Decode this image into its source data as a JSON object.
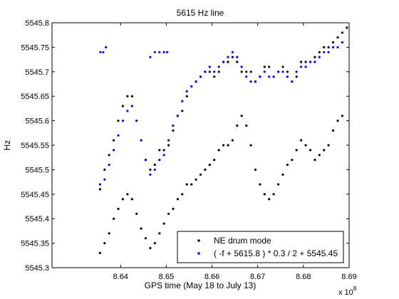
{
  "chart_data": {
    "type": "scatter",
    "title": "5615 Hz line",
    "xlabel": "GPS time (May 18 to July 13)",
    "ylabel": "Hz",
    "x_multiplier_label": "x 10",
    "x_multiplier_exponent": "8",
    "xlim": [
      8.625,
      8.69
    ],
    "ylim": [
      5545.3,
      5545.8
    ],
    "xticks": [
      8.64,
      8.65,
      8.66,
      8.67,
      8.68,
      8.69
    ],
    "xtick_labels": [
      "8.64",
      "8.65",
      "8.66",
      "8.67",
      "8.68",
      "8.69"
    ],
    "yticks": [
      5545.3,
      5545.35,
      5545.4,
      5545.45,
      5545.5,
      5545.55,
      5545.6,
      5545.65,
      5545.7,
      5545.75,
      5545.8
    ],
    "ytick_labels": [
      "5545.3",
      "5545.35",
      "5545.4",
      "5545.45",
      "5545.5",
      "5545.55",
      "5545.6",
      "5545.65",
      "5545.7",
      "5545.75",
      "5545.8"
    ],
    "grid": false,
    "legend_position": "bottom-right",
    "series": [
      {
        "name": "NE drum mode",
        "color": "#000000",
        "marker": "dot",
        "tracks": [
          {
            "x": [
              8.6355,
              8.6365,
              8.6375,
              8.6385,
              8.6395,
              8.6405,
              8.6415,
              8.6425,
              8.6435,
              8.6445,
              8.6455,
              8.6465,
              8.6475,
              8.6485,
              8.6495,
              8.6505,
              8.6515,
              8.6525,
              8.6535,
              8.6545,
              8.6555,
              8.6565,
              8.6575,
              8.6585,
              8.6595,
              8.6605,
              8.6615,
              8.6625,
              8.6635,
              8.6645,
              8.6655,
              8.6665,
              8.6675,
              8.6685,
              8.6695,
              8.6705,
              8.6715,
              8.6725,
              8.6735,
              8.6745,
              8.6755,
              8.6765,
              8.6775,
              8.6785,
              8.6795,
              8.6805,
              8.6815,
              8.6825,
              8.6835,
              8.6845,
              8.6855,
              8.6865,
              8.6875,
              8.6885,
              8.6895
            ],
            "y": [
              5545.46,
              5545.5,
              5545.53,
              5545.56,
              5545.6,
              5545.63,
              5545.65,
              5545.65,
              5545.6,
              5545.56,
              5545.52,
              5545.5,
              5545.51,
              5545.54,
              5545.54,
              5545.55,
              5545.58,
              5545.61,
              5545.62,
              5545.65,
              5545.67,
              5545.68,
              5545.69,
              5545.7,
              5545.7,
              5545.69,
              5545.7,
              5545.72,
              5545.72,
              5545.73,
              5545.72,
              5545.7,
              5545.7,
              5545.7,
              5545.68,
              5545.69,
              5545.71,
              5545.71,
              5545.69,
              5545.7,
              5545.71,
              5545.7,
              5545.68,
              5545.69,
              5545.72,
              5545.72,
              5545.72,
              5545.73,
              5545.74,
              5545.75,
              5545.75,
              5545.76,
              5545.77,
              5545.78,
              5545.79
            ]
          },
          {
            "x": [
              8.6355,
              8.6365,
              8.6375,
              8.6385,
              8.6395,
              8.6405,
              8.6415,
              8.6425,
              8.6435,
              8.6445,
              8.6455,
              8.6465,
              8.6475,
              8.6485,
              8.6495,
              8.6505,
              8.6515,
              8.6525,
              8.6535,
              8.6545,
              8.6555,
              8.6565,
              8.6575,
              8.6585,
              8.6595,
              8.6605,
              8.6615,
              8.6625,
              8.6635,
              8.6645,
              8.6655,
              8.6665,
              8.6675,
              8.6685,
              8.6695,
              8.6705,
              8.6715,
              8.6725,
              8.6735,
              8.6745,
              8.6755,
              8.6765,
              8.6775,
              8.6785,
              8.6795,
              8.6805,
              8.6815,
              8.6825,
              8.6835,
              8.6845,
              8.6855,
              8.6865,
              8.6875,
              8.6885
            ],
            "y": [
              5545.33,
              5545.35,
              5545.37,
              5545.4,
              5545.42,
              5545.44,
              5545.45,
              5545.44,
              5545.41,
              5545.38,
              5545.36,
              5545.34,
              5545.35,
              5545.37,
              5545.39,
              5545.41,
              5545.42,
              5545.44,
              5545.45,
              5545.47,
              5545.47,
              5545.48,
              5545.49,
              5545.5,
              5545.51,
              5545.52,
              5545.54,
              5545.55,
              5545.55,
              5545.56,
              5545.59,
              5545.61,
              5545.59,
              5545.55,
              5545.5,
              5545.47,
              5545.45,
              5545.44,
              5545.45,
              5545.47,
              5545.49,
              5545.51,
              5545.52,
              5545.54,
              5545.56,
              5545.55,
              5545.54,
              5545.52,
              5545.53,
              5545.54,
              5545.55,
              5545.58,
              5545.6,
              5545.61
            ]
          }
        ]
      },
      {
        "name": "( -f + 5615.8 ) * 0.3 / 2 + 5545.45",
        "color": "#0000ff",
        "marker": "dot",
        "tracks": [
          {
            "x": [
              8.6355,
              8.6365,
              8.6375,
              8.6385,
              8.6395,
              8.6405,
              8.6415,
              8.6425,
              8.6435,
              8.6445,
              8.6455,
              8.6465,
              8.6475,
              8.6485,
              8.6495,
              8.6505,
              8.6515,
              8.6525,
              8.6535,
              8.6545,
              8.6555,
              8.6565,
              8.6575,
              8.6585,
              8.6595,
              8.6605,
              8.6615,
              8.6625,
              8.6635,
              8.6645,
              8.6655,
              8.6665,
              8.6675,
              8.6685,
              8.6695,
              8.6705,
              8.6715,
              8.6725,
              8.6735,
              8.6745,
              8.6755,
              8.6765,
              8.6775,
              8.6785,
              8.6795,
              8.6805,
              8.6815,
              8.6825,
              8.6835,
              8.6845,
              8.6855,
              8.6865,
              8.6875,
              8.6885
            ],
            "y": [
              5545.47,
              5545.48,
              5545.51,
              5545.54,
              5545.57,
              5545.6,
              5545.62,
              5545.63,
              5545.6,
              5545.56,
              5545.52,
              5545.49,
              5545.5,
              5545.52,
              5545.53,
              5545.56,
              5545.59,
              5545.61,
              5545.64,
              5545.66,
              5545.67,
              5545.68,
              5545.69,
              5545.7,
              5545.71,
              5545.7,
              5545.71,
              5545.72,
              5545.73,
              5545.74,
              5545.73,
              5545.71,
              5545.69,
              5545.68,
              5545.68,
              5545.69,
              5545.7,
              5545.69,
              5545.69,
              5545.7,
              5545.7,
              5545.69,
              5545.68,
              5545.7,
              5545.71,
              5545.71,
              5545.72,
              5545.72,
              5545.73,
              5545.74,
              5545.74,
              5545.75,
              5545.75,
              5545.76
            ]
          },
          {
            "x": [
              8.6356,
              8.6362,
              8.6368,
              8.6465,
              8.6475,
              8.6485,
              8.6495,
              8.6502
            ],
            "y": [
              5545.74,
              5545.74,
              5545.75,
              5545.73,
              5545.74,
              5545.74,
              5545.74,
              5545.74
            ]
          }
        ]
      }
    ]
  }
}
